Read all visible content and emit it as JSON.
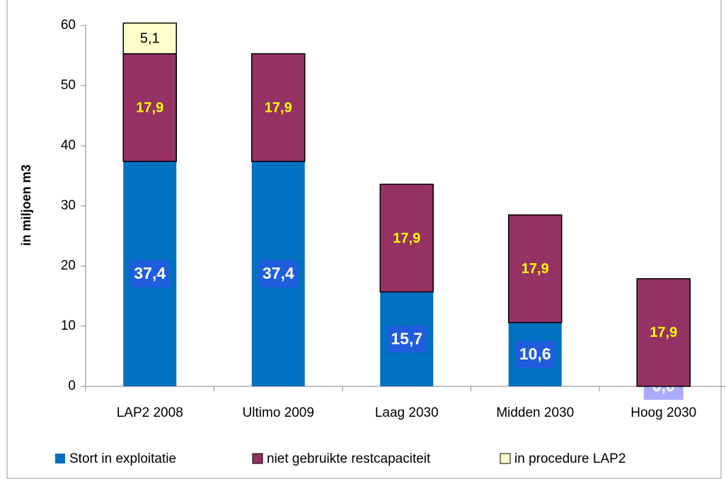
{
  "chart_data": {
    "type": "bar",
    "stacked": true,
    "y_label": "in miljoen m3",
    "categories": [
      "LAP2 2008",
      "Ultimo 2009",
      "Laag 2030",
      "Midden 2030",
      "Hoog 2030"
    ],
    "series": [
      {
        "name": "Stort in exploitatie",
        "color": "#0070c0",
        "values": [
          37.4,
          37.4,
          15.7,
          10.6,
          0.0
        ],
        "value_labels": [
          "37,4",
          "37,4",
          "15,7",
          "10,6",
          "0,0"
        ]
      },
      {
        "name": "niet gebruikte restcapaciteit",
        "color": "#953163",
        "values": [
          17.9,
          17.9,
          17.9,
          17.9,
          17.9
        ],
        "value_labels": [
          "17,9",
          "17,9",
          "17,9",
          "17,9",
          "17,9"
        ]
      },
      {
        "name": "in procedure LAP2",
        "color": "#ffffcc",
        "values": [
          5.1,
          null,
          null,
          null,
          null
        ],
        "value_labels": [
          "5,1",
          null,
          null,
          null,
          null
        ]
      }
    ],
    "ylim": [
      0,
      60
    ],
    "yticks": [
      0,
      10,
      20,
      30,
      40,
      50,
      60
    ],
    "legend": "bottom"
  }
}
